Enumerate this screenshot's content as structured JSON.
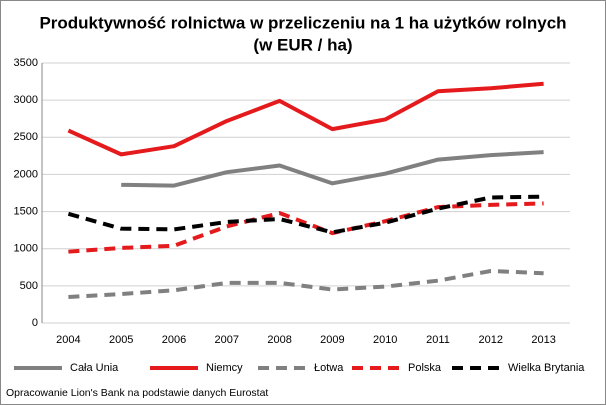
{
  "chart_data": {
    "type": "line",
    "title": "Produktywność rolnictwa w przeliczeniu na 1 ha użytków rolnych",
    "subtitle": "(w EUR / ha)",
    "categories": [
      "2004",
      "2005",
      "2006",
      "2007",
      "2008",
      "2009",
      "2010",
      "2011",
      "2012",
      "2013"
    ],
    "series": [
      {
        "name": "Cała Unia",
        "color": "#808080",
        "dashed": false,
        "values": [
          null,
          1860,
          1850,
          2030,
          2120,
          1880,
          2010,
          2200,
          2260,
          2300
        ]
      },
      {
        "name": "Niemcy",
        "color": "#e41a1c",
        "dashed": false,
        "values": [
          2590,
          2270,
          2380,
          2720,
          2990,
          2610,
          2740,
          3120,
          3160,
          3220
        ]
      },
      {
        "name": "Łotwa",
        "color": "#808080",
        "dashed": true,
        "values": [
          350,
          390,
          440,
          540,
          540,
          450,
          490,
          570,
          700,
          670
        ]
      },
      {
        "name": "Polska",
        "color": "#e41a1c",
        "dashed": true,
        "values": [
          960,
          1010,
          1040,
          1300,
          1480,
          1210,
          1370,
          1560,
          1590,
          1610
        ]
      },
      {
        "name": "Wielka Brytania",
        "color": "#000000",
        "dashed": true,
        "values": [
          1470,
          1270,
          1260,
          1360,
          1400,
          1220,
          1350,
          1540,
          1690,
          1700
        ]
      }
    ],
    "ylim": [
      0,
      3500
    ],
    "yticks": [
      0,
      500,
      1000,
      1500,
      2000,
      2500,
      3000,
      3500
    ],
    "grid": true,
    "legend": "bottom",
    "note": "Opracowanie Lion's Bank na podstawie danych Eurostat"
  }
}
